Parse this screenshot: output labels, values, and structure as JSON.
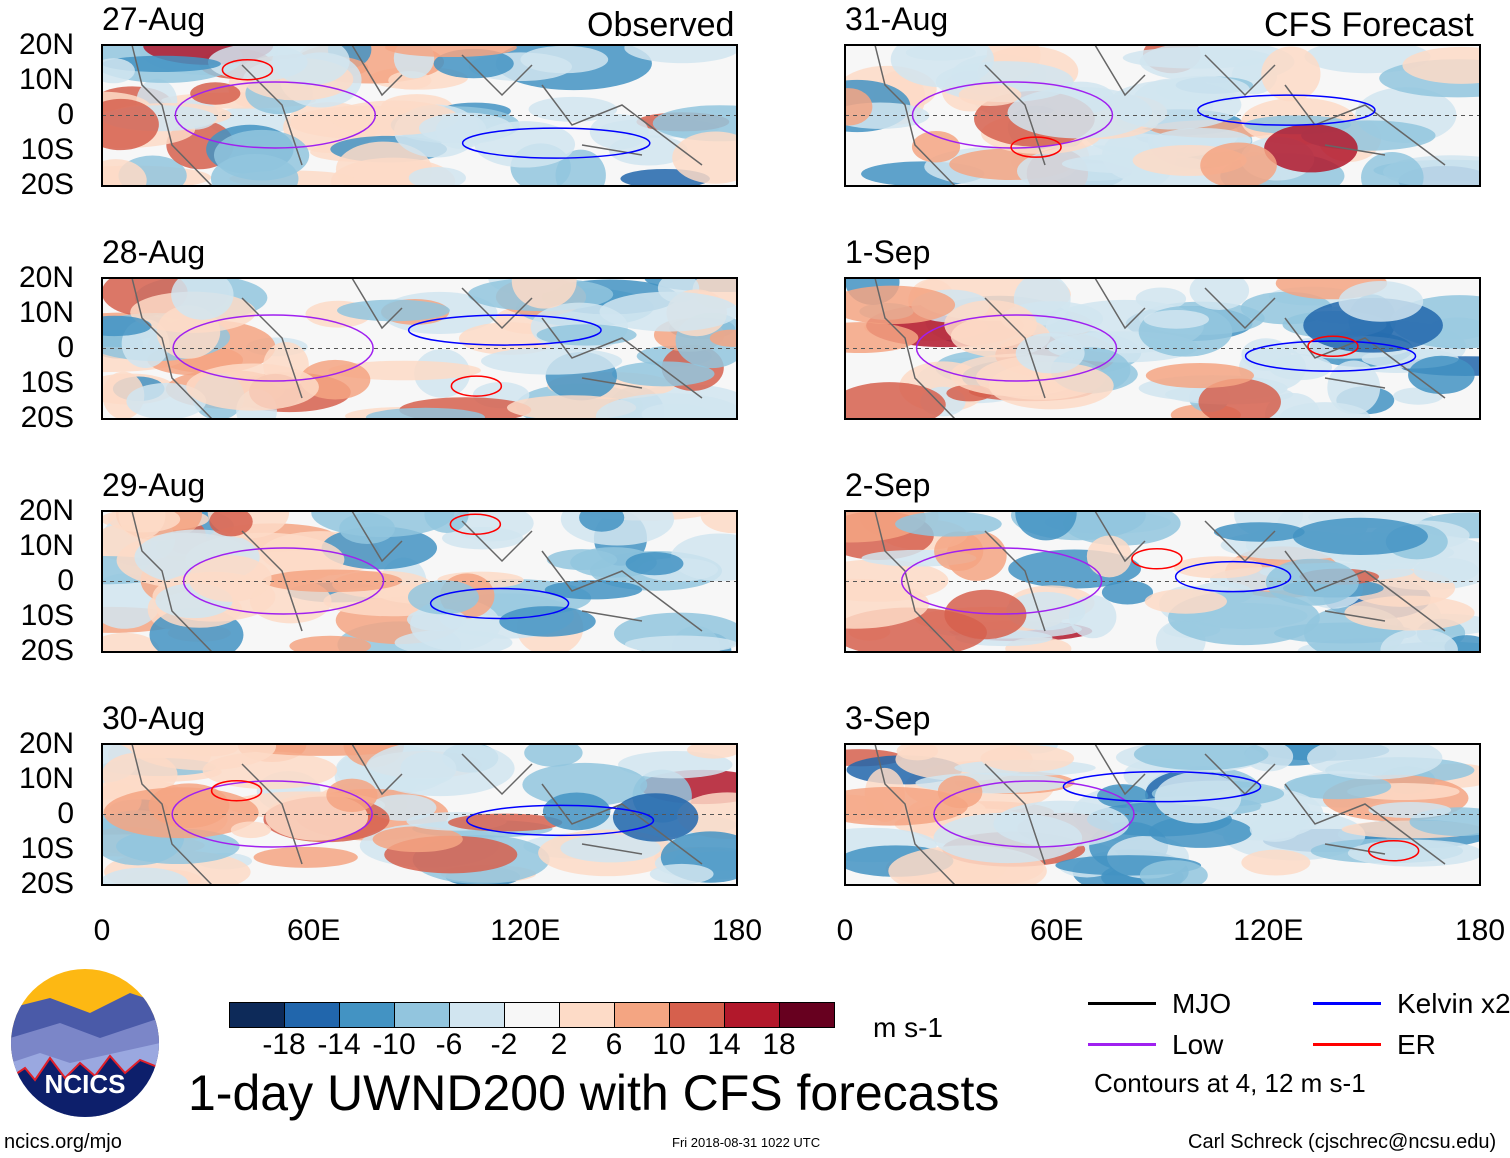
{
  "header": {
    "left_label": "Observed",
    "right_label": "CFS Forecast"
  },
  "chart_data": {
    "type": "heatmap",
    "title": "1-day UWND200 with CFS forecasts",
    "variable": "200-hPa zonal wind anomaly",
    "units": "m s-1",
    "panels": [
      {
        "date": "27-Aug",
        "column": "Observed"
      },
      {
        "date": "28-Aug",
        "column": "Observed"
      },
      {
        "date": "29-Aug",
        "column": "Observed"
      },
      {
        "date": "30-Aug",
        "column": "Observed"
      },
      {
        "date": "31-Aug",
        "column": "CFS Forecast"
      },
      {
        "date": "1-Sep",
        "column": "CFS Forecast"
      },
      {
        "date": "2-Sep",
        "column": "CFS Forecast"
      },
      {
        "date": "3-Sep",
        "column": "CFS Forecast"
      }
    ],
    "y_ticks": [
      "20N",
      "10N",
      "0",
      "10S",
      "20S"
    ],
    "x_ticks": [
      "0",
      "60E",
      "120E",
      "180"
    ],
    "xlim": [
      0,
      180
    ],
    "ylim": [
      -20,
      20
    ],
    "colorbar": {
      "labels": [
        "-18",
        "-14",
        "-10",
        "-6",
        "-2",
        "2",
        "6",
        "10",
        "14",
        "18"
      ],
      "colors": [
        "#0d2a59",
        "#2166ac",
        "#4393c3",
        "#92c5de",
        "#d1e5f0",
        "#f7f7f7",
        "#fddbc7",
        "#f4a582",
        "#d6604d",
        "#b2182b",
        "#67001f"
      ]
    },
    "legend": [
      {
        "label": "MJO",
        "color": "#000000"
      },
      {
        "label": "Kelvin x2",
        "color": "#0000ff"
      },
      {
        "label": "Low",
        "color": "#a020f0"
      },
      {
        "label": "ER",
        "color": "#ff0000"
      }
    ],
    "contour_note": "Contours at 4, 12 m s-1"
  },
  "footer": {
    "site": "ncics.org/mjo",
    "timestamp": "Fri 2018-08-31 1022 UTC",
    "credit": "Carl Schreck (cjschrec@ncsu.edu)",
    "logo_text": "NCICS"
  }
}
